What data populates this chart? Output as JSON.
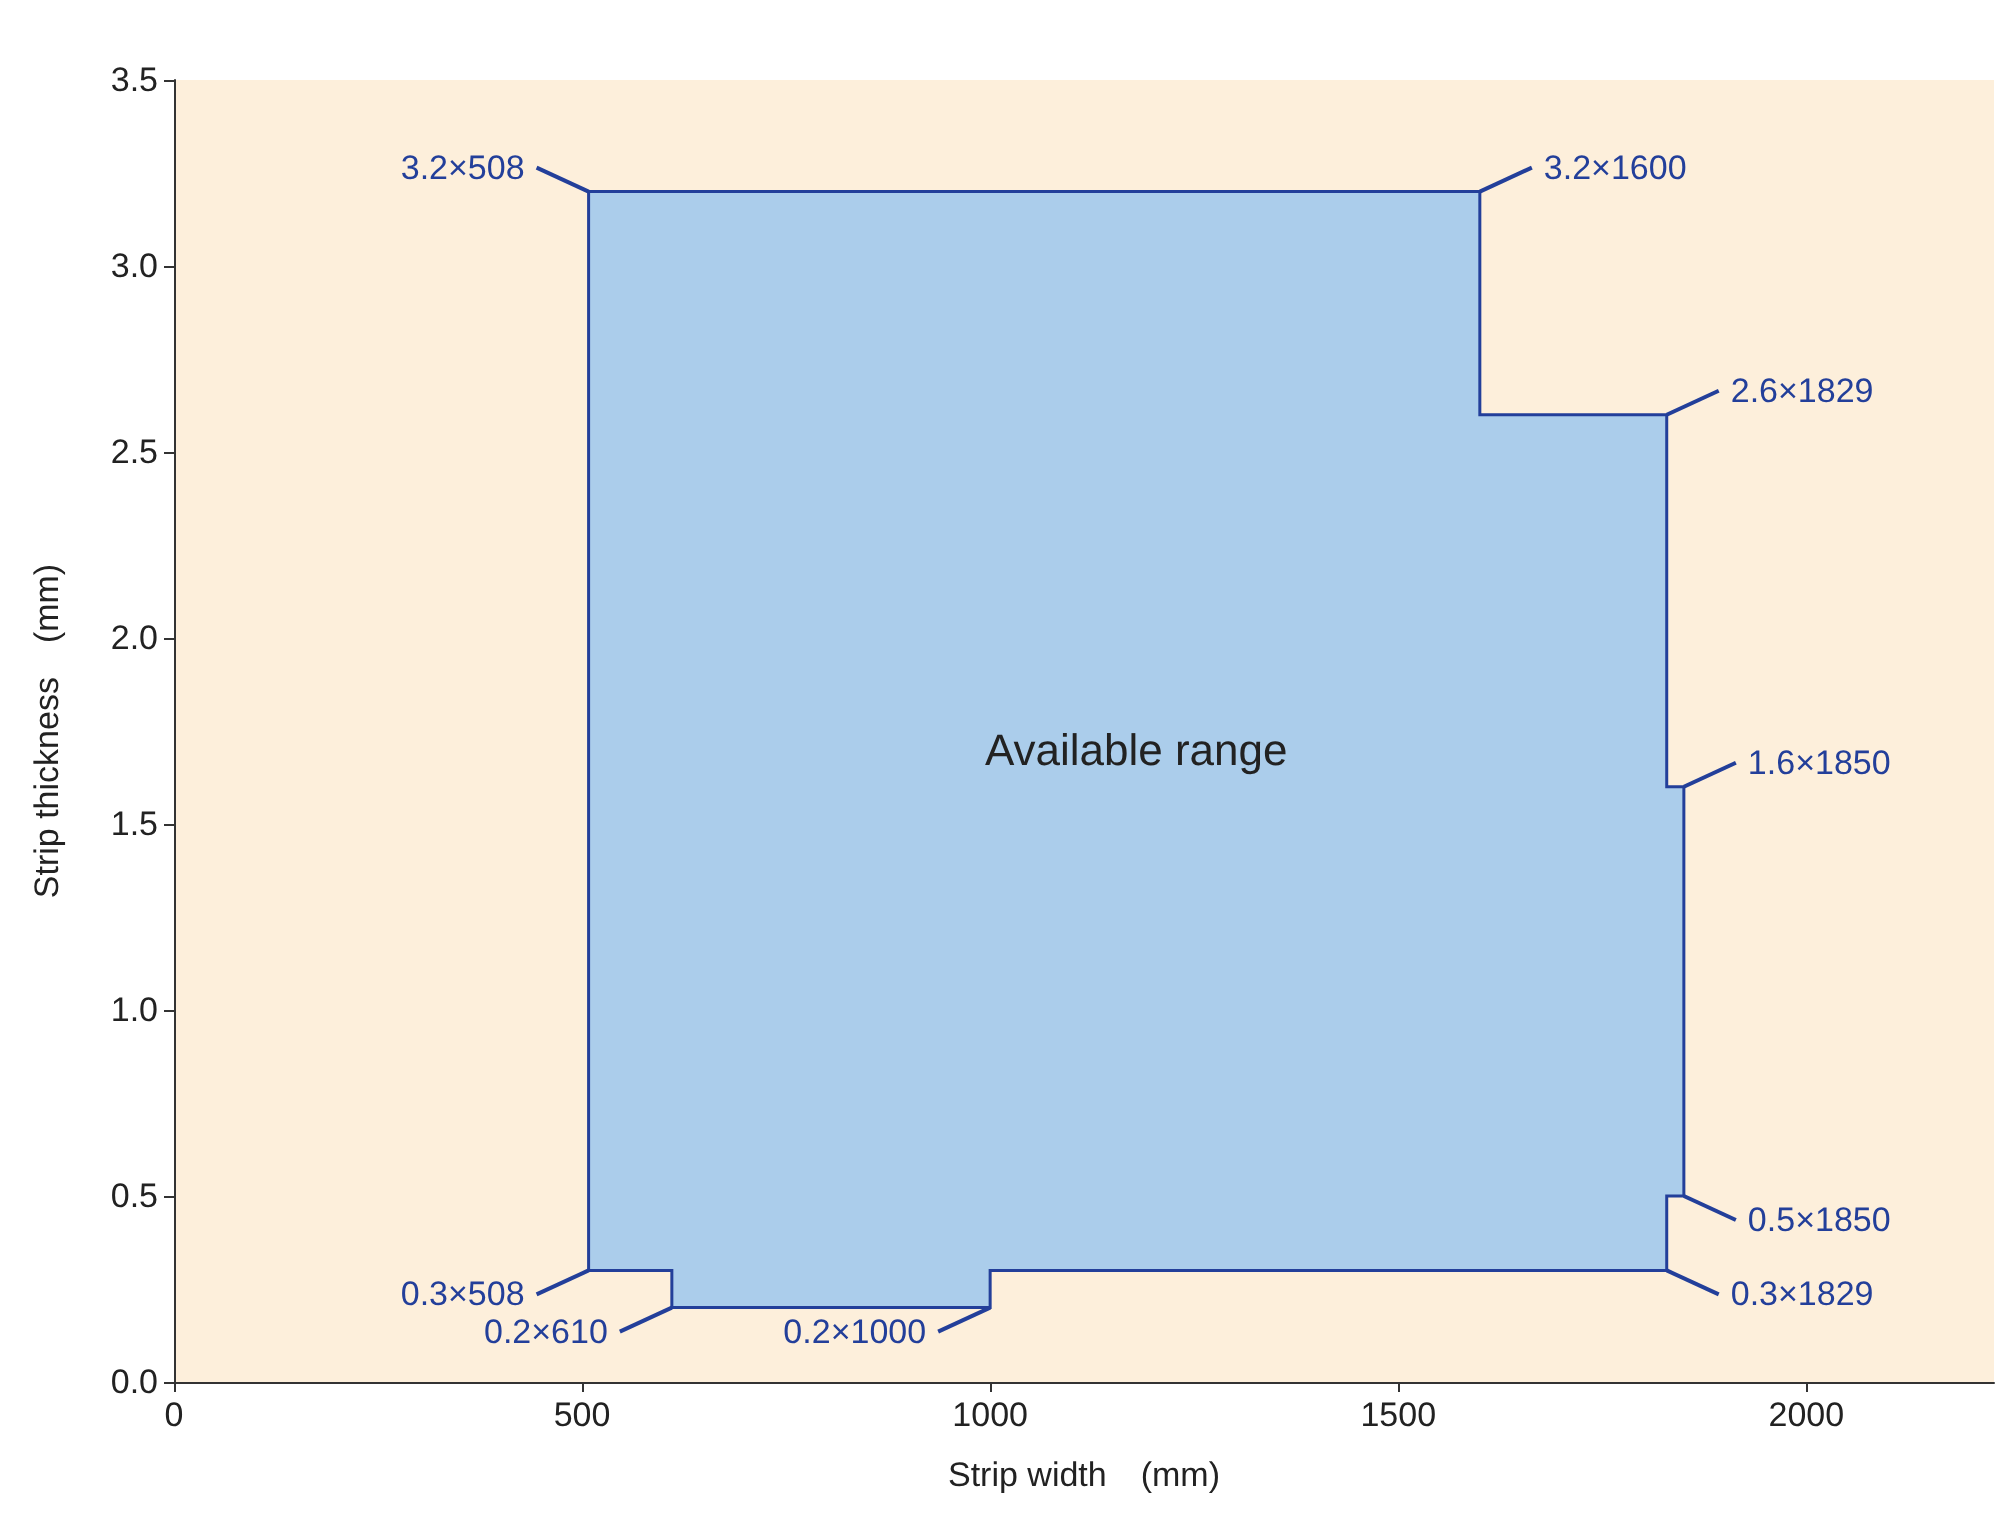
{
  "chart_data": {
    "type": "area",
    "xlabel": "Strip width　(mm)",
    "ylabel": "Strip thickness　(mm)",
    "xlim": [
      0,
      2230
    ],
    "xticks": [
      0,
      500,
      1000,
      1500,
      2000
    ],
    "ylim": [
      0,
      3.5
    ],
    "yticks": [
      {
        "value": 0,
        "label": "0.0"
      },
      0.5,
      {
        "value": 1,
        "label": "1.0"
      },
      1.5,
      {
        "value": 2,
        "label": "2.0"
      },
      2.5,
      {
        "value": 3,
        "label": "3.0"
      },
      3.5
    ],
    "series": [
      {
        "color": "#abcdeb",
        "x": [
          508,
          508,
          1600,
          1600,
          1829,
          1829,
          1850,
          1850,
          1829,
          1829,
          1000,
          1000,
          610,
          610,
          508
        ],
        "values": [
          0.3,
          3.2,
          3.2,
          2.6,
          2.6,
          1.6,
          1.6,
          0.5,
          0.5,
          0.3,
          0.3,
          0.2,
          0.2,
          0.3,
          0.3
        ]
      }
    ],
    "annotations": [
      "Available range",
      {
        "text": "3.2×508",
        "x": 508,
        "y": 3.2
      },
      {
        "text": "3.2×1600",
        "x": 1600,
        "y": 3.2
      },
      {
        "text": "2.6×1829",
        "x": 1829,
        "y": 2.6
      },
      {
        "text": "1.6×1850",
        "x": 1850,
        "y": 1.6
      },
      {
        "text": "0.5×1850",
        "x": 1850,
        "y": 0.5
      },
      {
        "text": "0.3×1829",
        "x": 1829,
        "y": 0.3
      },
      {
        "text": "0.2×1000",
        "x": 1000,
        "y": 0.2
      },
      {
        "text": "0.2×610",
        "x": 610,
        "y": 0.2
      },
      {
        "text": "0.3×508",
        "x": 508,
        "y": 0.3
      }
    ]
  }
}
